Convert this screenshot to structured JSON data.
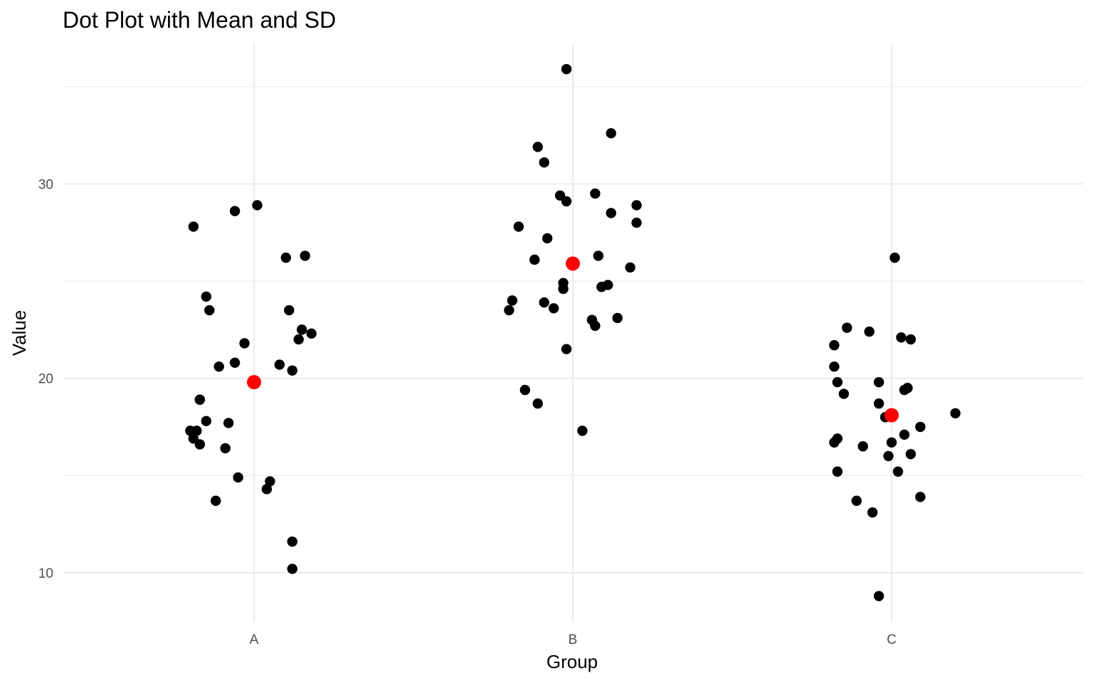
{
  "chart_data": {
    "type": "scatter",
    "title": "Dot Plot with Mean and SD",
    "xlabel": "Group",
    "ylabel": "Value",
    "categories": [
      "A",
      "B",
      "C"
    ],
    "ylim": [
      7.5,
      36.5
    ],
    "yticks": [
      10,
      20,
      30
    ],
    "grid": true,
    "point_color": "#000000",
    "mean_color": "#ff0000",
    "series": [
      {
        "category": "A",
        "offsets": [
          -0.19,
          -0.06,
          0.01,
          -0.15,
          0.16,
          0.1,
          -0.14,
          0.11,
          0.15,
          0.18,
          0.14,
          -0.03,
          -0.06,
          -0.11,
          0.08,
          0.12,
          -0.17,
          -0.17,
          -0.15,
          -0.2,
          -0.18,
          -0.19,
          -0.08,
          -0.09,
          -0.05,
          0.04,
          0.05,
          -0.12,
          -0.17,
          0.12,
          0.12
        ],
        "values": [
          27.8,
          28.6,
          28.9,
          24.2,
          26.3,
          26.2,
          23.5,
          23.5,
          22.5,
          22.3,
          22.0,
          21.8,
          20.8,
          20.6,
          20.7,
          20.4,
          18.9,
          18.9,
          17.8,
          17.3,
          17.3,
          16.9,
          17.7,
          16.4,
          14.9,
          14.3,
          14.7,
          13.7,
          16.6,
          11.6,
          10.2
        ]
      },
      {
        "category": "B",
        "offsets": [
          -0.02,
          0.12,
          -0.11,
          -0.09,
          -0.04,
          0.07,
          -0.02,
          0.12,
          0.2,
          0.2,
          -0.17,
          -0.08,
          -0.12,
          0.08,
          0.18,
          -0.03,
          -0.03,
          0.11,
          0.09,
          -0.19,
          -0.2,
          -0.09,
          -0.06,
          0.06,
          0.07,
          0.14,
          -0.02,
          -0.15,
          -0.11,
          0.03
        ],
        "values": [
          35.9,
          32.6,
          31.9,
          31.1,
          29.4,
          29.5,
          29.1,
          28.5,
          28.9,
          28.0,
          27.8,
          27.2,
          26.1,
          26.3,
          25.7,
          24.9,
          24.6,
          24.8,
          24.7,
          24.0,
          23.5,
          23.9,
          23.6,
          23.0,
          22.7,
          23.1,
          21.5,
          19.4,
          18.7,
          17.3
        ]
      },
      {
        "category": "C",
        "offsets": [
          0.01,
          -0.14,
          -0.07,
          0.03,
          0.06,
          -0.18,
          -0.18,
          -0.17,
          -0.04,
          0.05,
          0.04,
          0.05,
          -0.15,
          -0.04,
          -0.02,
          0.2,
          0.09,
          0.04,
          -0.17,
          -0.18,
          -0.09,
          0.0,
          -0.01,
          0.06,
          -0.17,
          0.02,
          -0.11,
          0.09,
          -0.06,
          -0.04
        ],
        "values": [
          26.2,
          22.6,
          22.4,
          22.1,
          22.0,
          21.7,
          20.6,
          19.8,
          19.8,
          19.5,
          19.4,
          19.5,
          19.2,
          18.7,
          18.0,
          18.2,
          17.5,
          17.1,
          16.9,
          16.7,
          16.5,
          16.7,
          16.0,
          16.1,
          15.2,
          15.2,
          13.7,
          13.9,
          13.1,
          8.8
        ]
      }
    ],
    "means": [
      {
        "category": "A",
        "value": 19.8
      },
      {
        "category": "B",
        "value": 25.9
      },
      {
        "category": "C",
        "value": 18.1
      }
    ]
  }
}
